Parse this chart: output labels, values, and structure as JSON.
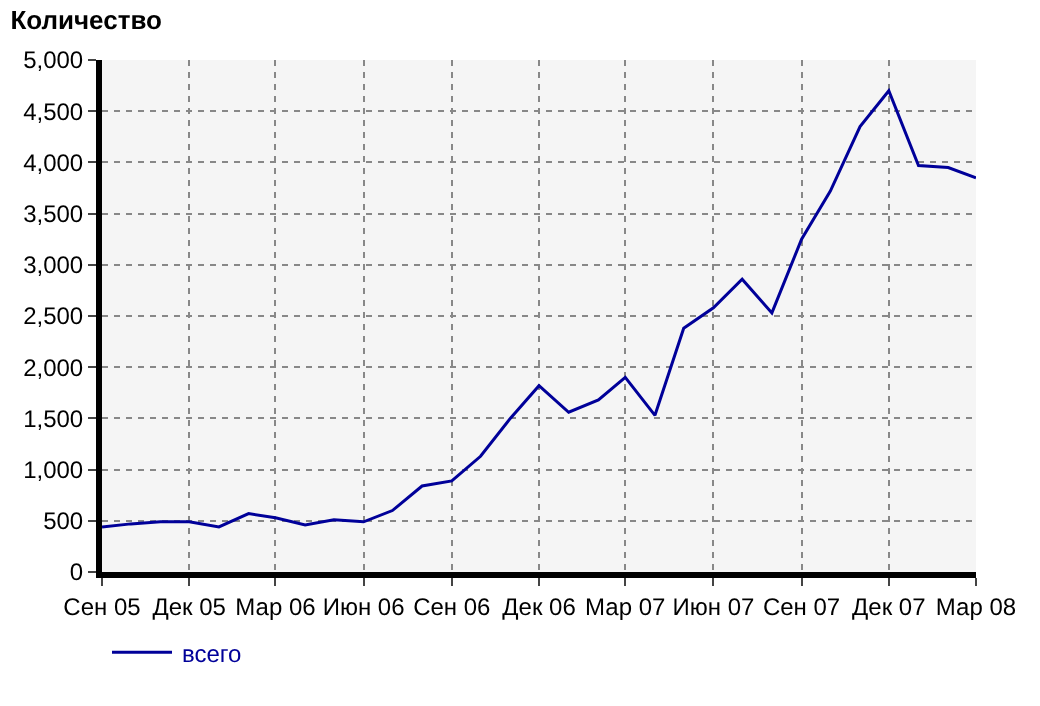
{
  "chart_data": {
    "type": "line",
    "title": "Количество",
    "x": [
      "2005-09",
      "2005-10",
      "2005-11",
      "2005-12",
      "2006-01",
      "2006-02",
      "2006-03",
      "2006-04",
      "2006-05",
      "2006-06",
      "2006-07",
      "2006-08",
      "2006-09",
      "2006-10",
      "2006-11",
      "2006-12",
      "2007-01",
      "2007-02",
      "2007-03",
      "2007-04",
      "2007-05",
      "2007-06",
      "2007-07",
      "2007-08",
      "2007-09",
      "2007-10",
      "2007-11",
      "2007-12",
      "2008-01",
      "2008-02",
      "2008-03"
    ],
    "series": [
      {
        "name": "всего",
        "color": "#000099",
        "values": [
          440,
          470,
          490,
          490,
          440,
          570,
          530,
          460,
          510,
          490,
          600,
          840,
          890,
          1130,
          1500,
          1820,
          1560,
          1680,
          1900,
          1530,
          2380,
          2580,
          2860,
          2530,
          3250,
          3720,
          4350,
          4700,
          3970,
          3950,
          3850
        ]
      }
    ],
    "xlim": [
      "2005-09",
      "2008-03"
    ],
    "xticks": [
      {
        "value": "2005-09",
        "label": "Сен 05"
      },
      {
        "value": "2005-12",
        "label": "Дек 05"
      },
      {
        "value": "2006-03",
        "label": "Мар 06"
      },
      {
        "value": "2006-06",
        "label": "Июн 06"
      },
      {
        "value": "2006-09",
        "label": "Сен 06"
      },
      {
        "value": "2006-12",
        "label": "Дек 06"
      },
      {
        "value": "2007-03",
        "label": "Мар 07"
      },
      {
        "value": "2007-06",
        "label": "Июн 07"
      },
      {
        "value": "2007-09",
        "label": "Сен 07"
      },
      {
        "value": "2007-12",
        "label": "Дек 07"
      },
      {
        "value": "2008-03",
        "label": "Мар 08"
      }
    ],
    "ylim": [
      0,
      5000
    ],
    "yticks": [
      {
        "value": 0,
        "label": "0"
      },
      {
        "value": 500,
        "label": "500"
      },
      {
        "value": 1000,
        "label": "1,000"
      },
      {
        "value": 1500,
        "label": "1,500"
      },
      {
        "value": 2000,
        "label": "2,000"
      },
      {
        "value": 2500,
        "label": "2,500"
      },
      {
        "value": 3000,
        "label": "3,000"
      },
      {
        "value": 3500,
        "label": "3,500"
      },
      {
        "value": 4000,
        "label": "4,000"
      },
      {
        "value": 4500,
        "label": "4,500"
      },
      {
        "value": 5000,
        "label": "5,000"
      }
    ],
    "grid": true,
    "legend": "bottom left",
    "marker": "none",
    "line_style": "solid"
  }
}
